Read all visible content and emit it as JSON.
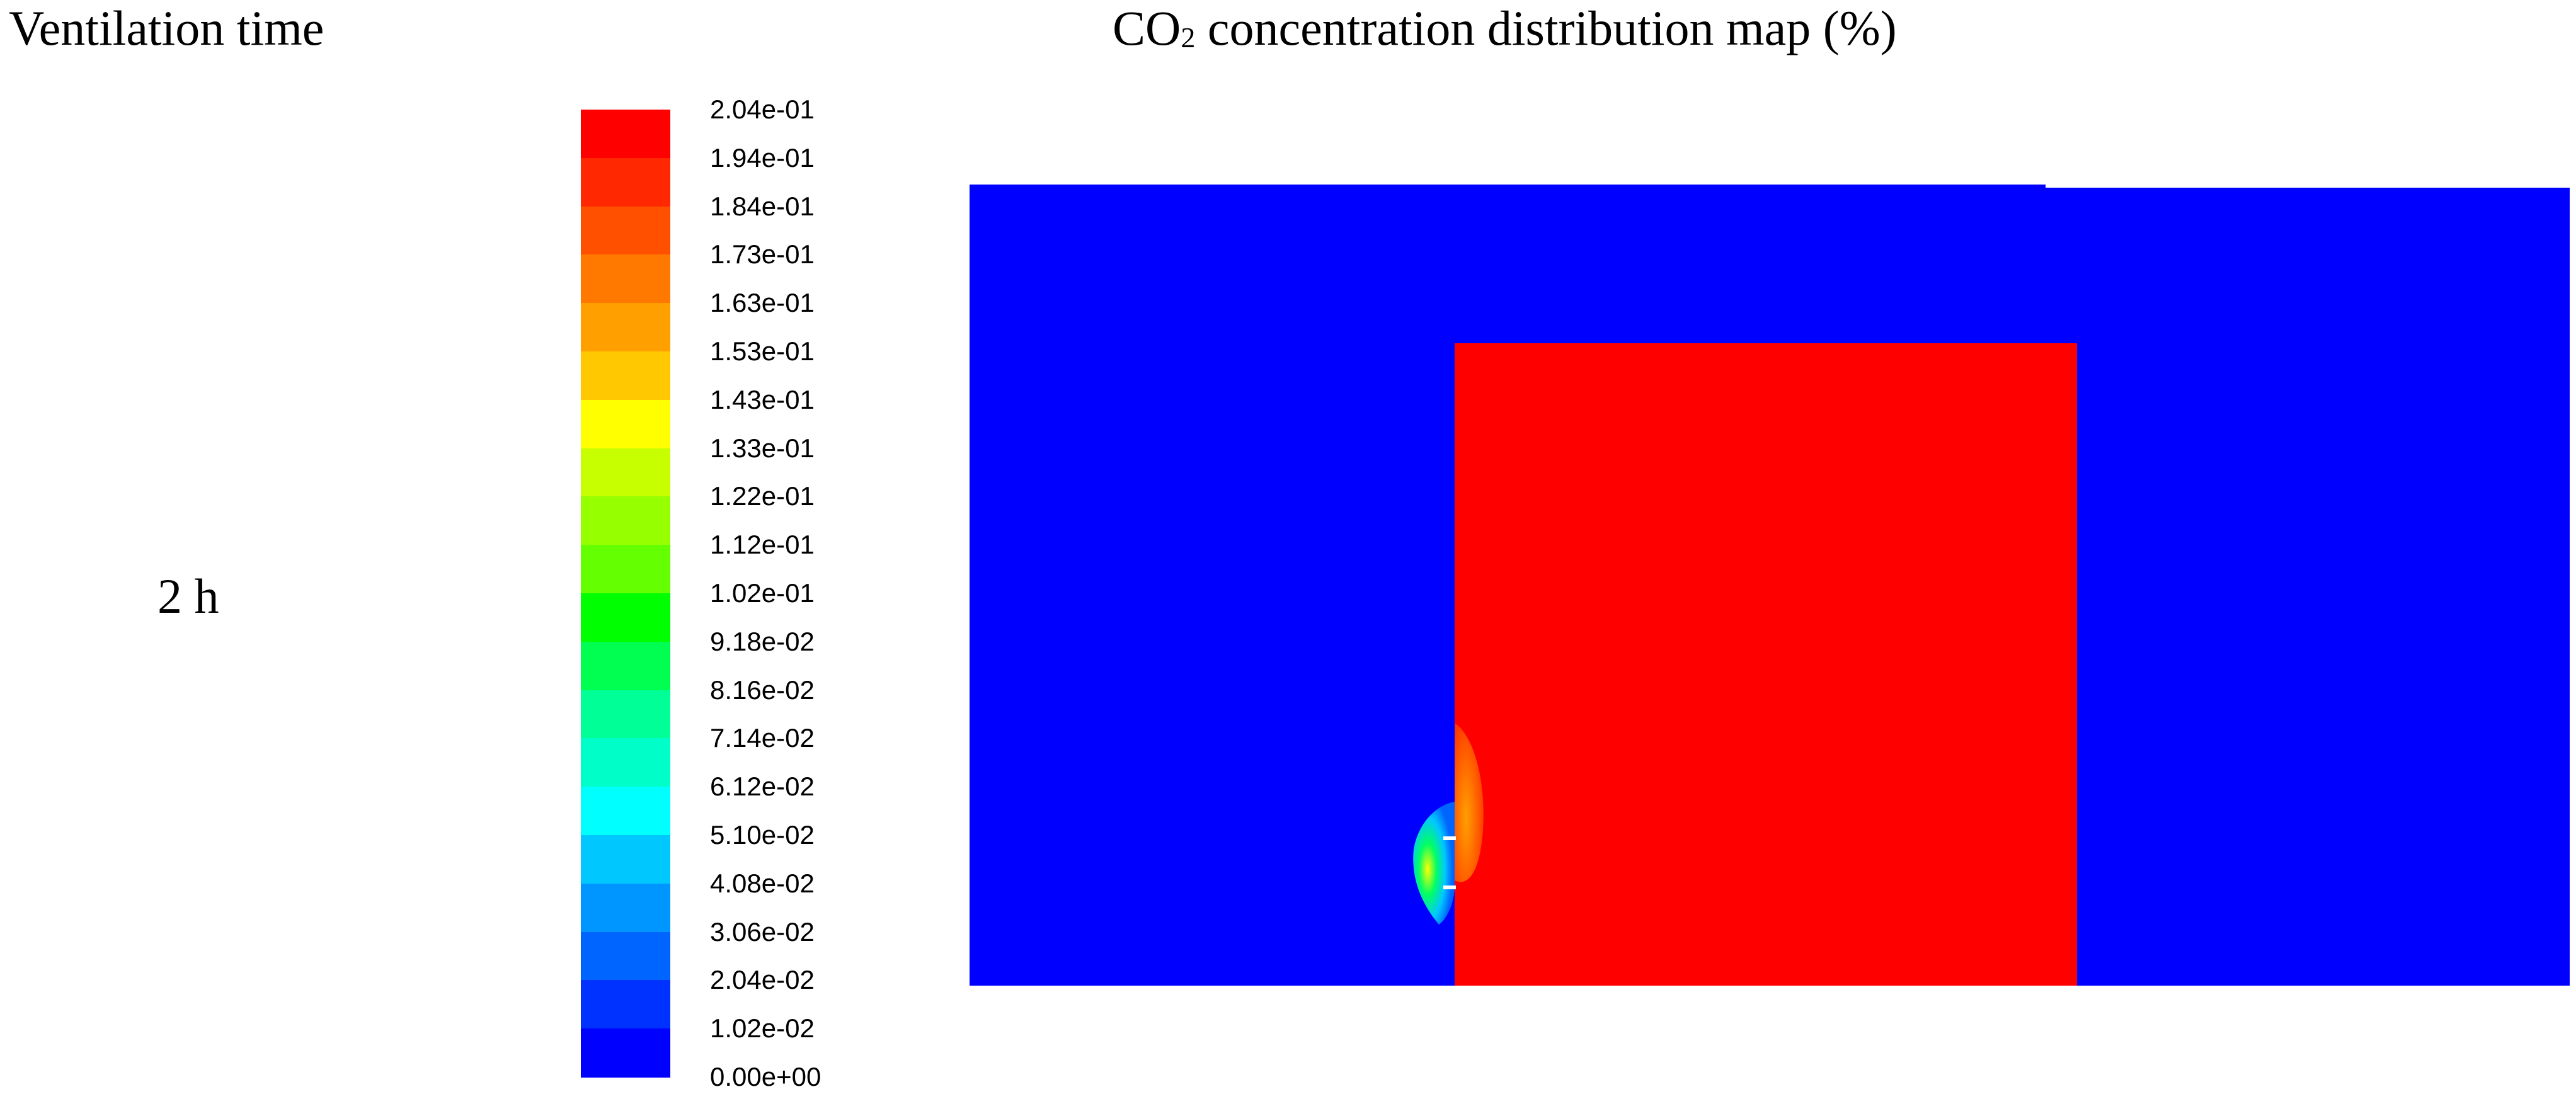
{
  "headers": {
    "ventilation_time": "Ventilation time",
    "map_title_pre": "CO",
    "map_title_sub": "2",
    "map_title_post": " concentration distribution map (%)"
  },
  "time_value": "2 h",
  "colorbar": {
    "labels": [
      "2.04e-01",
      "1.94e-01",
      "1.84e-01",
      "1.73e-01",
      "1.63e-01",
      "1.53e-01",
      "1.43e-01",
      "1.33e-01",
      "1.22e-01",
      "1.12e-01",
      "1.02e-01",
      "9.18e-02",
      "8.16e-02",
      "7.14e-02",
      "6.12e-02",
      "5.10e-02",
      "4.08e-02",
      "3.06e-02",
      "2.04e-02",
      "1.02e-02",
      "0.00e+00"
    ],
    "colors": [
      "#ff0000",
      "#ff2800",
      "#ff5000",
      "#ff7800",
      "#ffa000",
      "#ffc800",
      "#ffff00",
      "#c8ff00",
      "#96ff00",
      "#64ff00",
      "#00ff00",
      "#00ff50",
      "#00ff96",
      "#00ffc8",
      "#00ffff",
      "#00c8ff",
      "#0096ff",
      "#0064ff",
      "#0032ff",
      "#0000ff"
    ]
  },
  "domain_colors": {
    "background": "#0000ff",
    "high_region": "#ff0000"
  }
}
